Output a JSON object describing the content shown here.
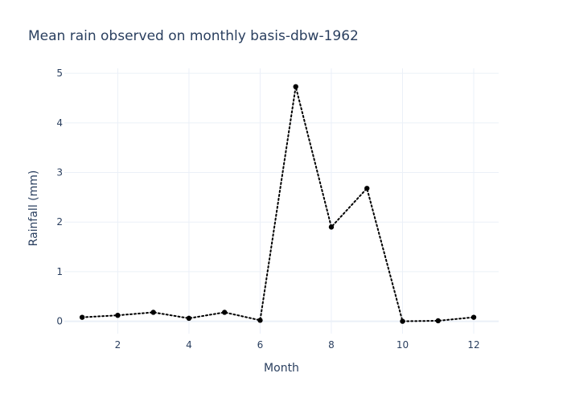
{
  "chart_data": {
    "type": "line",
    "title": "Mean rain observed on monthly basis-dbw-1962",
    "xlabel": "Month",
    "ylabel": "Rainfall (mm)",
    "xlim": [
      0.5,
      12.7
    ],
    "ylim": [
      -0.25,
      5.1
    ],
    "x_ticks": [
      2,
      4,
      6,
      8,
      10,
      12
    ],
    "y_ticks": [
      0,
      1,
      2,
      3,
      4,
      5
    ],
    "grid": true,
    "line_style": "dotted",
    "marker": "circle",
    "colors": {
      "line": "#000000",
      "marker": "#000000",
      "text": "#2a3f5f",
      "grid": "#ebf0f8"
    },
    "series": [
      {
        "x": [
          1,
          2,
          3,
          4,
          5,
          6,
          7,
          8,
          9,
          10,
          11,
          12
        ],
        "values": [
          0.08,
          0.12,
          0.18,
          0.06,
          0.18,
          0.02,
          4.73,
          1.9,
          2.68,
          0.0,
          0.01,
          0.08
        ]
      }
    ]
  }
}
